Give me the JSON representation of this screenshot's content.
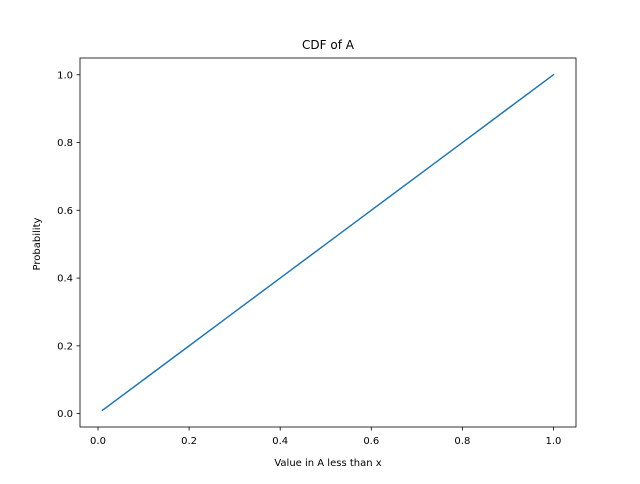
{
  "chart_data": {
    "type": "line",
    "title": "CDF of A",
    "xlabel": "Value in A less than x",
    "ylabel": "Probability",
    "xlim": [
      -0.0395,
      1.0495
    ],
    "ylim": [
      -0.0395,
      1.0495
    ],
    "xticks": [
      0.0,
      0.2,
      0.4,
      0.6,
      0.8,
      1.0
    ],
    "yticks": [
      0.0,
      0.2,
      0.4,
      0.6,
      0.8,
      1.0
    ],
    "xtick_labels": [
      "0.0",
      "0.2",
      "0.4",
      "0.6",
      "0.8",
      "1.0"
    ],
    "ytick_labels": [
      "0.0",
      "0.2",
      "0.4",
      "0.6",
      "0.8",
      "1.0"
    ],
    "grid": false,
    "series": [
      {
        "color": "#1f77b4",
        "x": [
          0.01,
          0.1,
          0.2,
          0.3,
          0.4,
          0.5,
          0.6,
          0.7,
          0.8,
          0.9,
          1.0
        ],
        "y": [
          0.01,
          0.1,
          0.2,
          0.3,
          0.4,
          0.5,
          0.6,
          0.7,
          0.8,
          0.9,
          1.0
        ]
      }
    ]
  }
}
